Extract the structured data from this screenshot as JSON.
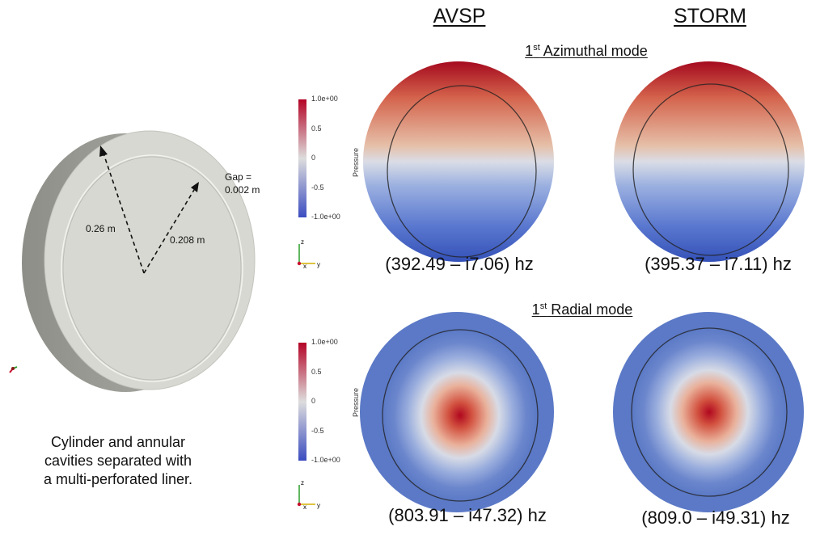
{
  "columns": {
    "left": "AVSP",
    "right": "STORM"
  },
  "modes": {
    "azimuthal": {
      "ordinal": "1",
      "suffix": "st",
      "title": " Azimuthal mode"
    },
    "radial": {
      "ordinal": "1",
      "suffix": "st",
      "title": " Radial mode"
    }
  },
  "frequencies": {
    "avsp_azimuthal": "(392.49 – i7.06) hz",
    "storm_azimuthal": "(395.37 – i7.11) hz",
    "avsp_radial": "(803.91 – i47.32) hz",
    "storm_radial": "(809.0 – i49.31) hz"
  },
  "colorbar": {
    "title": "Pressure",
    "ticks": [
      "1.0e+00",
      "0.5",
      "0",
      "-0.5",
      "-1.0e+00"
    ],
    "colors": {
      "high": "#b40426",
      "mid": "#dddddd",
      "low": "#3b4cc0"
    }
  },
  "geometry": {
    "radius_outer": "0.26 m",
    "radius_inner": "0.208 m",
    "gap_line1": "Gap =",
    "gap_line2": "0.002 m",
    "caption": "Cylinder and annular\ncavities separated with\na multi-perforated liner."
  },
  "axes": {
    "z": "z",
    "y": "y",
    "x": "x"
  }
}
